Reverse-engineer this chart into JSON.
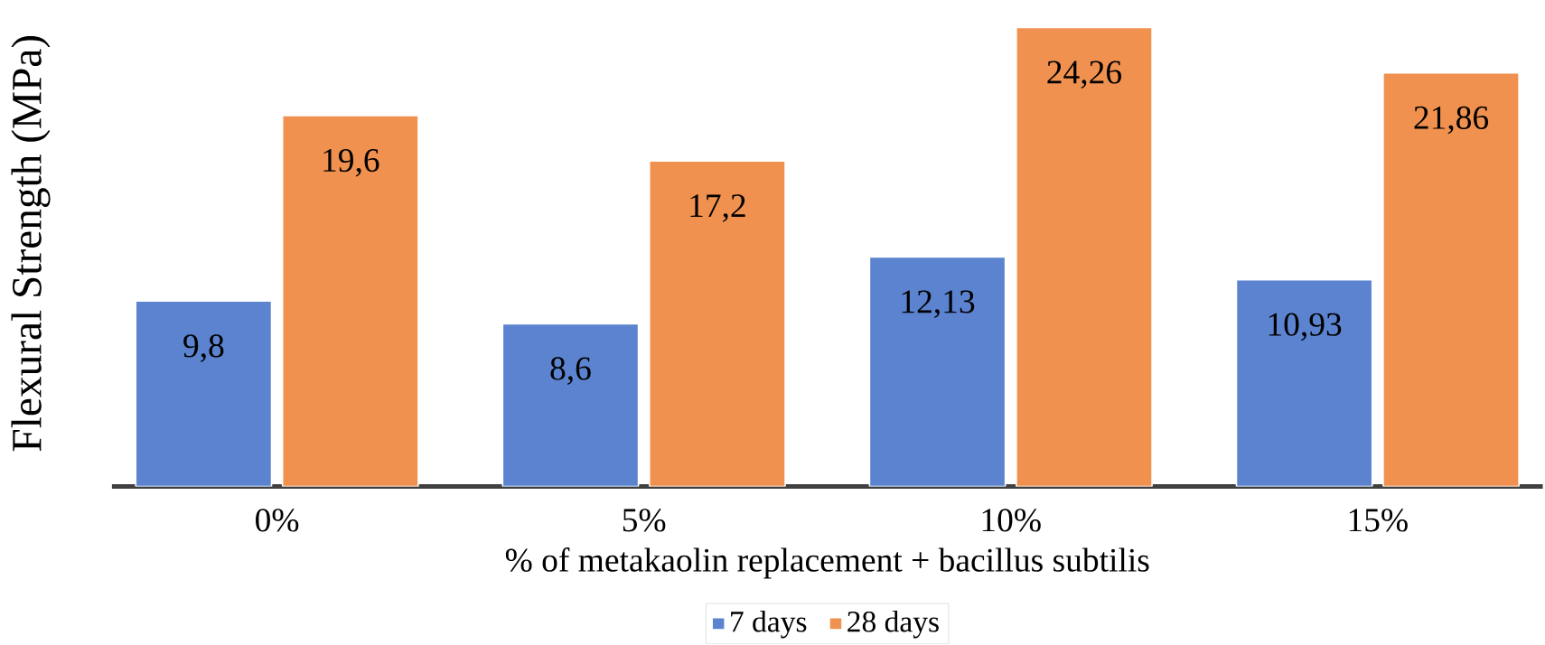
{
  "chart_data": {
    "type": "bar",
    "xlabel": "% of metakaolin replacement + bacillus subtilis",
    "ylabel": "Flexural Strength (MPa)",
    "categories": [
      "0%",
      "5%",
      "10%",
      "15%"
    ],
    "legend": "bottom",
    "series": [
      {
        "name": "7 days",
        "color": "#5b83cf",
        "values": [
          9.8,
          8.6,
          12.13,
          10.93
        ],
        "value_labels": [
          "9,8",
          "8,6",
          "12,13",
          "10,93"
        ]
      },
      {
        "name": "28 days",
        "color": "#f0914f",
        "values": [
          19.6,
          17.2,
          24.26,
          21.86
        ],
        "value_labels": [
          "19,6",
          "17,2",
          "24,26",
          "21,86"
        ]
      }
    ]
  }
}
